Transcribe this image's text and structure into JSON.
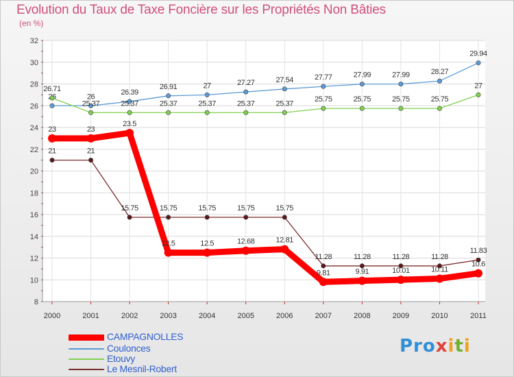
{
  "title": "Evolution du Taux de Taxe Foncière sur les Propriétés Non Bâties",
  "unit_label": "(en %)",
  "brand": {
    "p1": "Pro",
    "x": "x",
    "i": "i",
    "t": "t",
    "i2": "i"
  },
  "chart_data": {
    "type": "line",
    "title": "Evolution du Taux de Taxe Foncière sur les Propriétés Non Bâties",
    "ylabel": "(en %)",
    "xlabel": "",
    "ylim": [
      8,
      32
    ],
    "yticks": [
      8,
      10,
      12,
      14,
      16,
      18,
      20,
      22,
      24,
      26,
      28,
      30,
      32
    ],
    "x": [
      "2000",
      "2001",
      "2002",
      "2003",
      "2004",
      "2005",
      "2006",
      "2007",
      "2008",
      "2009",
      "2010",
      "2011"
    ],
    "grid": true,
    "series": [
      {
        "name": "CAMPAGNOLLES",
        "color": "#ff0000",
        "values": [
          23,
          23,
          23.5,
          12.5,
          12.5,
          12.68,
          12.81,
          9.81,
          9.91,
          10.01,
          10.11,
          10.6
        ],
        "labels": [
          "23",
          "23",
          "23.5",
          "12.5",
          "12.5",
          "12.68",
          "12.81",
          "9.81",
          "9.91",
          "10.01",
          "10.11",
          "10.6"
        ]
      },
      {
        "name": "Coulonces",
        "color": "#5a9ad5",
        "values": [
          26,
          26,
          26.39,
          26.91,
          27,
          27.27,
          27.54,
          27.77,
          27.99,
          27.99,
          28.27,
          29.94
        ],
        "labels": [
          "26",
          "26",
          "26.39",
          "26.91",
          "27",
          "27.27",
          "27.54",
          "27.77",
          "27.99",
          "27.99",
          "28.27",
          "29.94"
        ]
      },
      {
        "name": "Etouvy",
        "color": "#80d050",
        "values": [
          26.71,
          25.37,
          25.37,
          25.37,
          25.37,
          25.37,
          25.37,
          25.75,
          25.75,
          25.75,
          25.75,
          27
        ],
        "labels": [
          "26.71",
          "25.37",
          "25.37",
          "25.37",
          "25.37",
          "25.37",
          "25.37",
          "25.75",
          "25.75",
          "25.75",
          "25.75",
          "27"
        ]
      },
      {
        "name": "Le Mesnil-Robert",
        "color": "#7a2a2a",
        "values": [
          21,
          21,
          15.75,
          15.75,
          15.75,
          15.75,
          15.75,
          11.28,
          11.28,
          11.28,
          11.28,
          11.83
        ],
        "labels": [
          "21",
          "21",
          "15.75",
          "15.75",
          "15.75",
          "15.75",
          "15.75",
          "11.28",
          "11.28",
          "11.28",
          "11.28",
          "11.83"
        ]
      }
    ]
  }
}
